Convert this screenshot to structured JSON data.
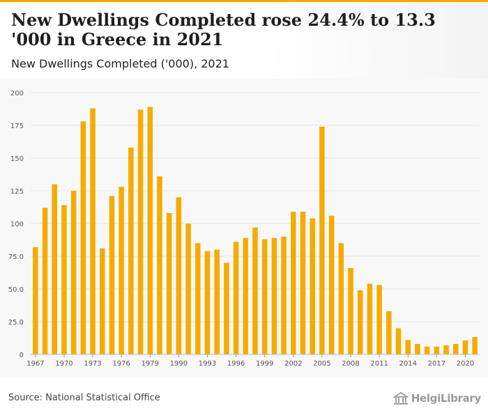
{
  "header": {
    "title": "New Dwellings Completed rose 24.4% to 13.3 '000 in Greece in 2021",
    "subtitle": "New Dwellings Completed ('000), 2021"
  },
  "footer": {
    "source": "Source: National Statistical Office",
    "logo_text": "HelgiLibrary"
  },
  "colors": {
    "bar": "#f5ab00",
    "accent": "#f2a900",
    "grid": "#e3e3e3"
  },
  "chart_data": {
    "type": "bar",
    "title": "New Dwellings Completed rose 24.4% to 13.3 '000 in Greece in 2021",
    "subtitle": "New Dwellings Completed ('000), 2021",
    "xlabel": "",
    "ylabel": "",
    "ylim": [
      0,
      200
    ],
    "yticks": [
      "0",
      "25.0",
      "50.0",
      "75.0",
      "100",
      "125",
      "150",
      "175",
      "200"
    ],
    "xtick_labels": [
      "1967",
      "1970",
      "1973",
      "1976",
      "1979",
      "1990",
      "1993",
      "1996",
      "1999",
      "2002",
      "2005",
      "2008",
      "2011",
      "2014",
      "2017",
      "2020"
    ],
    "grid": true,
    "categories": [
      "1967",
      "1968",
      "1969",
      "1970",
      "1971",
      "1972",
      "1973",
      "1974",
      "1975",
      "1976",
      "1977",
      "1978",
      "1979",
      "1980",
      "1989",
      "1990",
      "1991",
      "1992",
      "1993",
      "1994",
      "1995",
      "1996",
      "1997",
      "1998",
      "1999",
      "2000",
      "2001",
      "2002",
      "2003",
      "2004",
      "2005",
      "2006",
      "2007",
      "2008",
      "2009",
      "2010",
      "2011",
      "2012",
      "2013",
      "2014",
      "2015",
      "2016",
      "2017",
      "2018",
      "2019",
      "2020",
      "2021"
    ],
    "values": [
      82,
      112,
      130,
      114,
      125,
      178,
      188,
      81,
      121,
      128,
      158,
      187,
      189,
      136,
      108,
      120,
      100,
      85,
      79,
      80,
      70,
      86,
      89,
      97,
      88,
      89,
      90,
      109,
      109,
      104,
      174,
      106,
      85,
      66,
      49,
      54,
      53,
      33,
      20,
      11,
      8,
      6,
      6,
      7,
      8,
      10.7,
      13.3
    ]
  }
}
